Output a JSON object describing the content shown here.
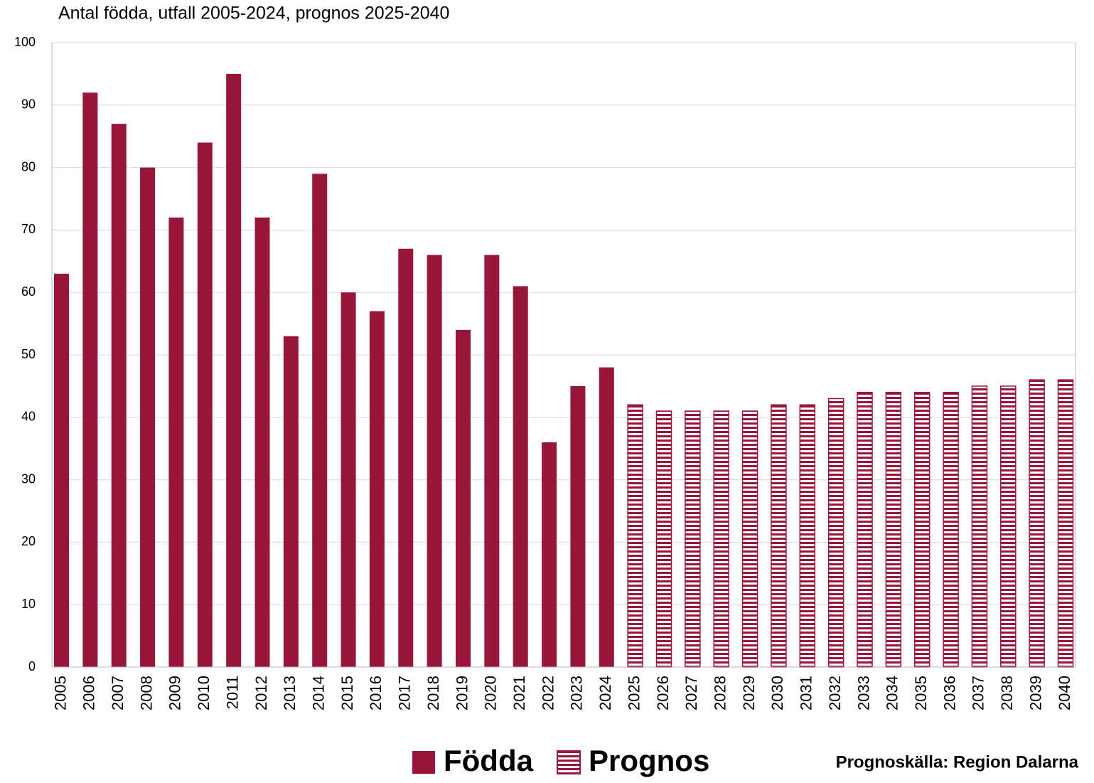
{
  "chart_data": {
    "type": "bar",
    "title": "Antal födda, utfall 2005-2024, prognos 2025-2040",
    "annotation": "Prognoskälla: Region Dalarna",
    "categories": [
      "2005",
      "2006",
      "2007",
      "2008",
      "2009",
      "2010",
      "2011",
      "2012",
      "2013",
      "2014",
      "2015",
      "2016",
      "2017",
      "2018",
      "2019",
      "2020",
      "2021",
      "2022",
      "2023",
      "2024",
      "2025",
      "2026",
      "2027",
      "2028",
      "2029",
      "2030",
      "2031",
      "2032",
      "2033",
      "2034",
      "2035",
      "2036",
      "2037",
      "2038",
      "2039",
      "2040"
    ],
    "series": [
      {
        "name": "Födda",
        "color": "#97163a",
        "values": [
          63,
          92,
          87,
          80,
          72,
          84,
          95,
          72,
          53,
          79,
          60,
          57,
          67,
          66,
          54,
          66,
          61,
          36,
          45,
          48,
          null,
          null,
          null,
          null,
          null,
          null,
          null,
          null,
          null,
          null,
          null,
          null,
          null,
          null,
          null,
          null
        ]
      },
      {
        "name": "Prognos",
        "color": "#97163a",
        "hatch": "horizontal",
        "values": [
          null,
          null,
          null,
          null,
          null,
          null,
          null,
          null,
          null,
          null,
          null,
          null,
          null,
          null,
          null,
          null,
          null,
          null,
          null,
          null,
          42,
          41,
          41,
          41,
          41,
          42,
          42,
          43,
          44,
          44,
          44,
          44,
          45,
          45,
          46,
          46
        ]
      }
    ],
    "ylim": [
      0,
      100
    ],
    "yticks": [
      0,
      10,
      20,
      30,
      40,
      50,
      60,
      70,
      80,
      90,
      100
    ],
    "grid": true
  }
}
